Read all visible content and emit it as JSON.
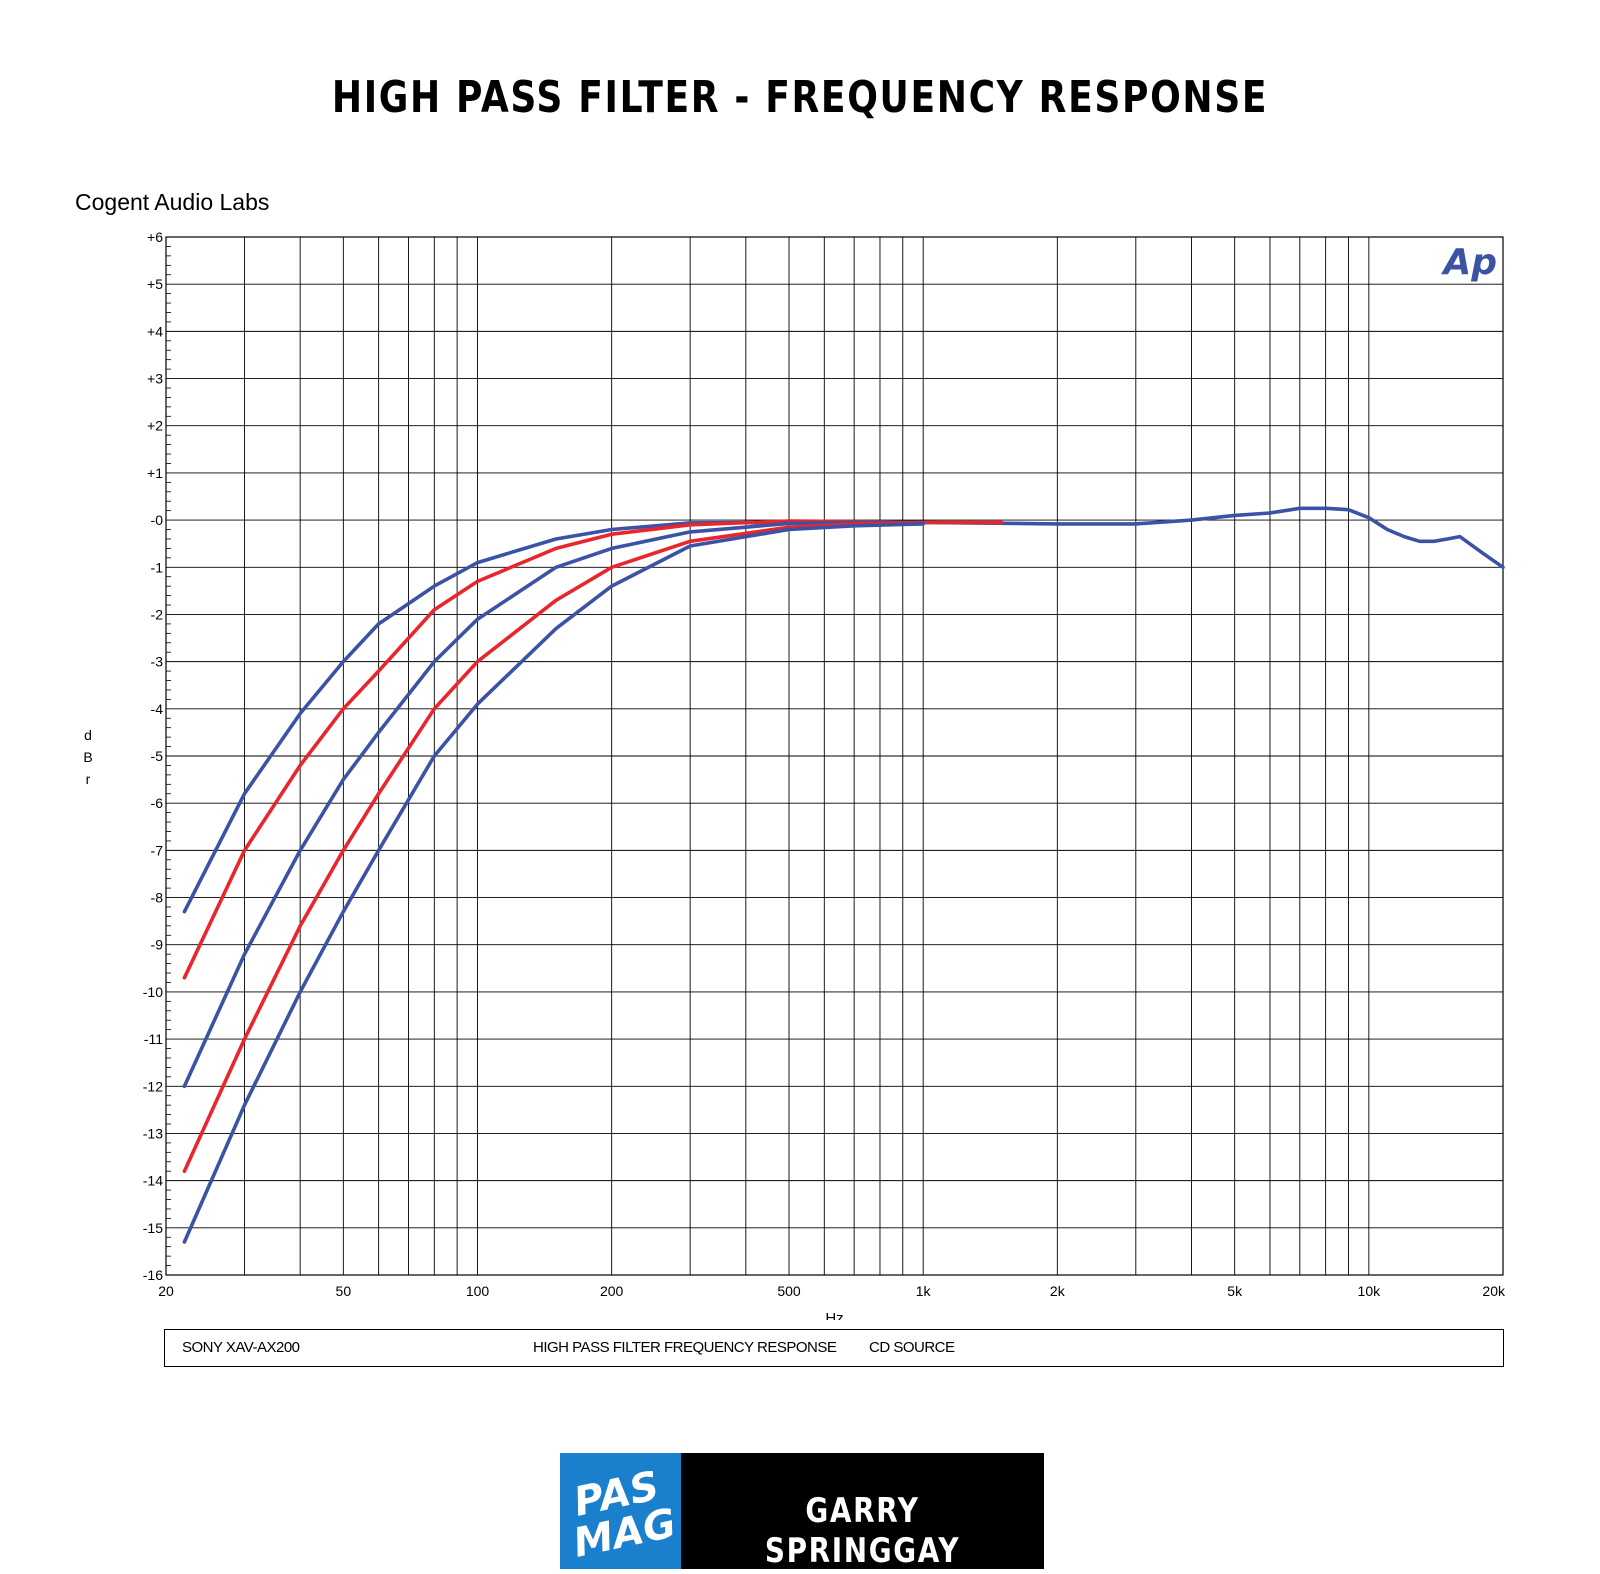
{
  "page": {
    "title": "HIGH PASS FILTER - FREQUENCY RESPONSE",
    "brand": "Cogent Audio Labs",
    "watermark": "Ap",
    "info": {
      "device": "SONY XAV-AX200",
      "description": "HIGH PASS FILTER FREQUENCY RESPONSE",
      "source": "CD SOURCE"
    },
    "footer": {
      "logo_line1": "PAS",
      "logo_line2": "MAG",
      "author": "GARRY SPRINGGAY"
    },
    "colors": {
      "blue": "#3a53a4",
      "red": "#e8262c",
      "logo_blue": "#1a7fcd",
      "footer_black": "#000000"
    }
  },
  "chart_data": {
    "type": "line",
    "title": "HIGH PASS FILTER - FREQUENCY RESPONSE",
    "xlabel": "Hz",
    "ylabel": "dBr",
    "x_scale": "log",
    "xlim": [
      20,
      20000
    ],
    "ylim": [
      -16,
      6
    ],
    "grid": true,
    "x_ticks": [
      {
        "value": 20,
        "label": "20"
      },
      {
        "value": 50,
        "label": "50"
      },
      {
        "value": 100,
        "label": "100"
      },
      {
        "value": 200,
        "label": "200"
      },
      {
        "value": 500,
        "label": "500"
      },
      {
        "value": 1000,
        "label": "1k"
      },
      {
        "value": 2000,
        "label": "2k"
      },
      {
        "value": 5000,
        "label": "5k"
      },
      {
        "value": 10000,
        "label": "10k"
      },
      {
        "value": 20000,
        "label": "20k"
      }
    ],
    "y_ticks": [
      {
        "value": 6,
        "label": "+6"
      },
      {
        "value": 5,
        "label": "+5"
      },
      {
        "value": 4,
        "label": "+4"
      },
      {
        "value": 3,
        "label": "+3"
      },
      {
        "value": 2,
        "label": "+2"
      },
      {
        "value": 1,
        "label": "+1"
      },
      {
        "value": 0,
        "label": "-0"
      },
      {
        "value": -1,
        "label": "-1"
      },
      {
        "value": -2,
        "label": "-2"
      },
      {
        "value": -3,
        "label": "-3"
      },
      {
        "value": -4,
        "label": "-4"
      },
      {
        "value": -5,
        "label": "-5"
      },
      {
        "value": -6,
        "label": "-6"
      },
      {
        "value": -7,
        "label": "-7"
      },
      {
        "value": -8,
        "label": "-8"
      },
      {
        "value": -9,
        "label": "-9"
      },
      {
        "value": -10,
        "label": "-10"
      },
      {
        "value": -11,
        "label": "-11"
      },
      {
        "value": -12,
        "label": "-12"
      },
      {
        "value": -13,
        "label": "-13"
      },
      {
        "value": -14,
        "label": "-14"
      },
      {
        "value": -15,
        "label": "-15"
      },
      {
        "value": -16,
        "label": "-16"
      }
    ],
    "series": [
      {
        "color": "#3a53a4",
        "x": [
          22,
          30,
          40,
          50,
          60,
          80,
          100,
          150,
          200,
          300,
          500,
          1000,
          2000,
          3000,
          4000,
          5000,
          6000,
          7000,
          8000,
          9000,
          10000,
          11000,
          12000,
          13000,
          14000,
          15000,
          16000,
          18000,
          20000
        ],
        "y": [
          -8.3,
          -5.8,
          -4.1,
          -3.0,
          -2.2,
          -1.4,
          -0.9,
          -0.4,
          -0.2,
          -0.06,
          -0.05,
          -0.05,
          -0.08,
          -0.08,
          0.0,
          0.1,
          0.15,
          0.25,
          0.25,
          0.22,
          0.05,
          -0.2,
          -0.35,
          -0.45,
          -0.45,
          -0.4,
          -0.35,
          -0.7,
          -1.0
        ]
      },
      {
        "color": "#e8262c",
        "x": [
          22,
          30,
          40,
          50,
          60,
          80,
          100,
          150,
          200,
          300,
          500,
          700,
          1000,
          1500
        ],
        "y": [
          -9.7,
          -7.0,
          -5.2,
          -4.0,
          -3.2,
          -1.9,
          -1.3,
          -0.6,
          -0.3,
          -0.1,
          -0.02,
          -0.03,
          -0.05,
          -0.05
        ]
      },
      {
        "color": "#3a53a4",
        "x": [
          22,
          30,
          40,
          50,
          60,
          80,
          100,
          150,
          200,
          300,
          500,
          700,
          1000
        ],
        "y": [
          -12.0,
          -9.2,
          -7.0,
          -5.5,
          -4.5,
          -3.0,
          -2.1,
          -1.0,
          -0.6,
          -0.25,
          -0.07,
          -0.05,
          -0.05
        ]
      },
      {
        "color": "#e8262c",
        "x": [
          22,
          30,
          40,
          50,
          60,
          80,
          100,
          150,
          200,
          300,
          500,
          700,
          1000
        ],
        "y": [
          -13.8,
          -11.0,
          -8.6,
          -7.0,
          -5.8,
          -4.0,
          -3.0,
          -1.7,
          -1.0,
          -0.45,
          -0.15,
          -0.08,
          -0.06
        ]
      },
      {
        "color": "#3a53a4",
        "x": [
          22,
          30,
          40,
          50,
          60,
          80,
          100,
          150,
          200,
          300,
          500,
          700,
          1000
        ],
        "y": [
          -15.3,
          -12.4,
          -10.0,
          -8.3,
          -7.0,
          -5.0,
          -3.9,
          -2.3,
          -1.4,
          -0.55,
          -0.2,
          -0.12,
          -0.08
        ]
      }
    ]
  }
}
